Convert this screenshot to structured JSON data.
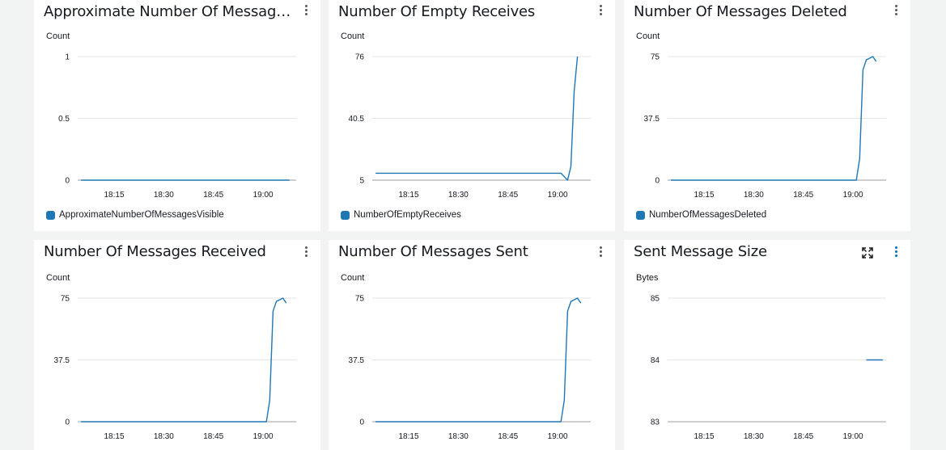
{
  "widgets": [
    {
      "title": "Approximate Number Of Messages Visible",
      "unit": "Count",
      "legend": "ApproximateNumberOfMessagesVisible",
      "has_expand": false
    },
    {
      "title": "Number Of Empty Receives",
      "unit": "Count",
      "legend": "NumberOfEmptyReceives",
      "has_expand": false
    },
    {
      "title": "Number Of Messages Deleted",
      "unit": "Count",
      "legend": "NumberOfMessagesDeleted",
      "has_expand": false
    },
    {
      "title": "Number Of Messages Received",
      "unit": "Count",
      "legend": "",
      "has_expand": false
    },
    {
      "title": "Number Of Messages Sent",
      "unit": "Count",
      "legend": "",
      "has_expand": false
    },
    {
      "title": "Sent Message Size",
      "unit": "Bytes",
      "legend": "",
      "has_expand": true
    }
  ],
  "icons": {
    "menu": "vertical-ellipsis-icon",
    "expand": "expand-arrows-icon"
  },
  "colors": {
    "series": "#1f77b4",
    "menu_active": "#0073bb"
  },
  "chart_data": [
    {
      "type": "line",
      "xticks": [
        "18:15",
        "18:30",
        "18:45",
        "19:00"
      ],
      "xlim": [
        "18:04",
        "19:10"
      ],
      "yticks": [
        "0",
        "0.5",
        "1"
      ],
      "ylim": [
        0,
        1
      ],
      "ylabel": "Count",
      "series": [
        {
          "name": "ApproximateNumberOfMessagesVisible",
          "x": [
            "18:05",
            "19:08"
          ],
          "values": [
            0,
            0
          ]
        }
      ]
    },
    {
      "type": "line",
      "xticks": [
        "18:15",
        "18:30",
        "18:45",
        "19:00"
      ],
      "xlim": [
        "18:04",
        "19:10"
      ],
      "yticks": [
        "5",
        "40.5",
        "76"
      ],
      "ylim": [
        5,
        76
      ],
      "ylabel": "Count",
      "series": [
        {
          "name": "NumberOfEmptyReceives",
          "x": [
            "18:05",
            "19:00",
            "19:01",
            "19:03",
            "19:04",
            "19:05",
            "19:06"
          ],
          "values": [
            9,
            9,
            9,
            5,
            13,
            56,
            76
          ]
        }
      ]
    },
    {
      "type": "line",
      "xticks": [
        "18:15",
        "18:30",
        "18:45",
        "19:00"
      ],
      "xlim": [
        "18:04",
        "19:10"
      ],
      "yticks": [
        "0",
        "37.5",
        "75"
      ],
      "ylim": [
        0,
        75
      ],
      "ylabel": "Count",
      "series": [
        {
          "name": "NumberOfMessagesDeleted",
          "x": [
            "18:05",
            "19:01",
            "19:02",
            "19:03",
            "19:04",
            "19:06",
            "19:07"
          ],
          "values": [
            0,
            0,
            13,
            67,
            73,
            75,
            72
          ]
        }
      ]
    },
    {
      "type": "line",
      "xticks": [
        "18:15",
        "18:30",
        "18:45",
        "19:00"
      ],
      "xlim": [
        "18:04",
        "19:10"
      ],
      "yticks": [
        "0",
        "37.5",
        "75"
      ],
      "ylim": [
        0,
        75
      ],
      "ylabel": "Count",
      "series": [
        {
          "name": "",
          "x": [
            "18:05",
            "19:01",
            "19:02",
            "19:03",
            "19:04",
            "19:06",
            "19:07"
          ],
          "values": [
            0,
            0,
            13,
            67,
            73,
            75,
            72
          ]
        }
      ]
    },
    {
      "type": "line",
      "xticks": [
        "18:15",
        "18:30",
        "18:45",
        "19:00"
      ],
      "xlim": [
        "18:04",
        "19:10"
      ],
      "yticks": [
        "0",
        "37.5",
        "75"
      ],
      "ylim": [
        0,
        75
      ],
      "ylabel": "Count",
      "series": [
        {
          "name": "",
          "x": [
            "18:05",
            "19:01",
            "19:02",
            "19:03",
            "19:04",
            "19:06",
            "19:07"
          ],
          "values": [
            0,
            0,
            13,
            67,
            73,
            75,
            72
          ]
        }
      ]
    },
    {
      "type": "line",
      "xticks": [
        "18:15",
        "18:30",
        "18:45",
        "19:00"
      ],
      "xlim": [
        "18:04",
        "19:10"
      ],
      "yticks": [
        "83",
        "84",
        "85"
      ],
      "ylim": [
        83,
        85
      ],
      "ylabel": "Bytes",
      "series": [
        {
          "name": "",
          "x": [
            "19:04",
            "19:09"
          ],
          "values": [
            84,
            84
          ]
        }
      ]
    }
  ]
}
